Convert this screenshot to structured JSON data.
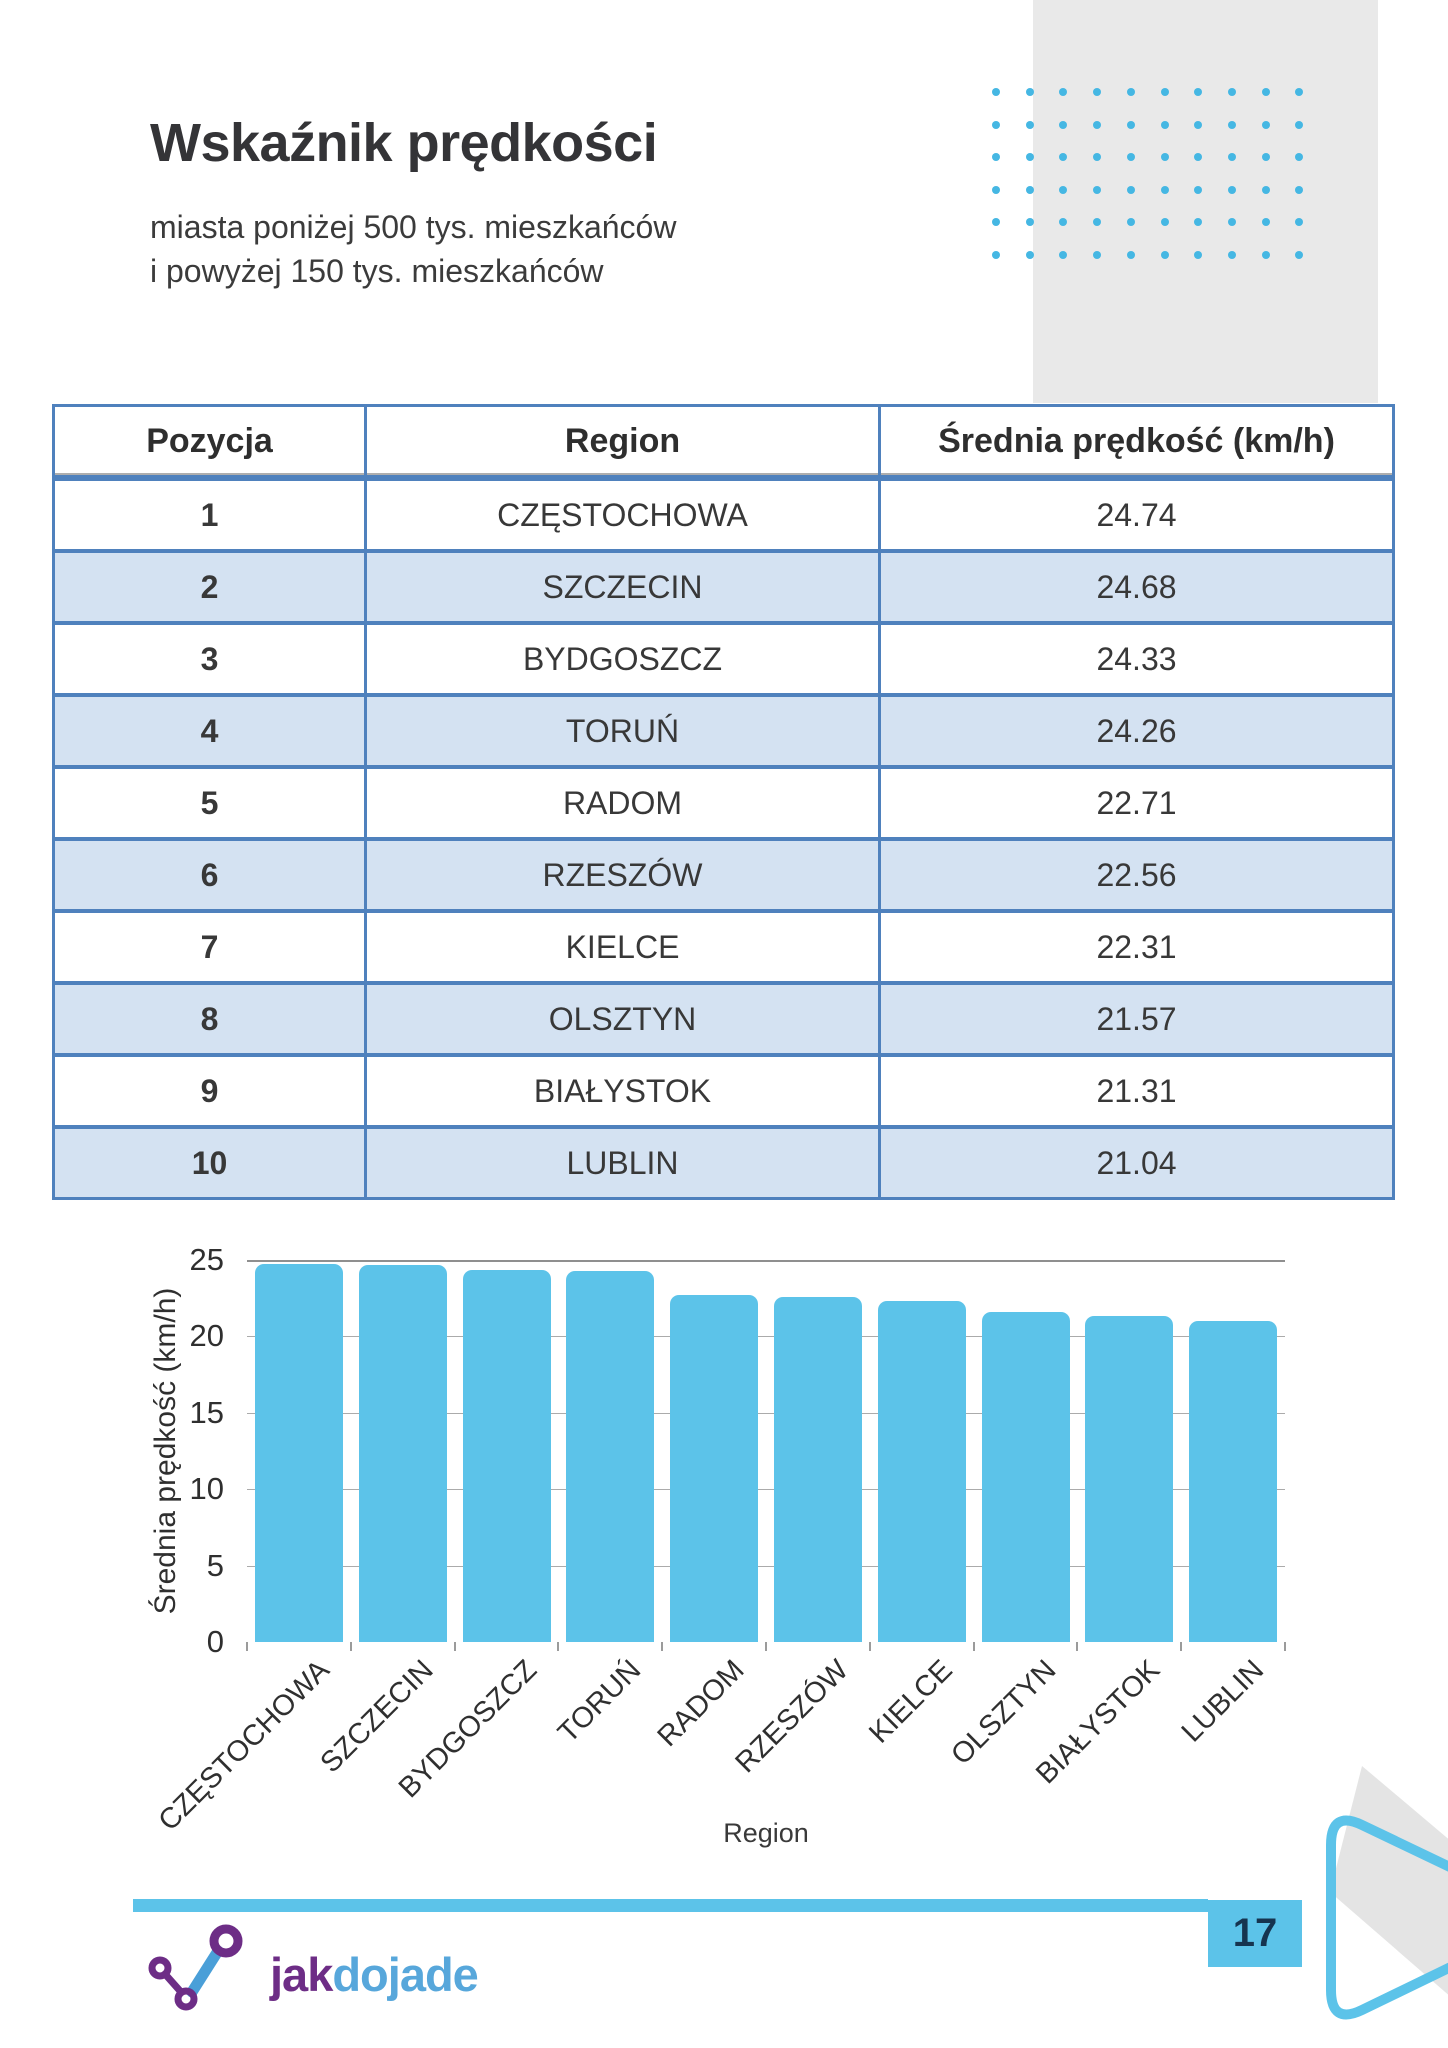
{
  "header": {
    "title": "Wskaźnik prędkości",
    "subtitle_line1": "miasta poniżej 500 tys. mieszkańców",
    "subtitle_line2": "i powyżej 150 tys. mieszkańców"
  },
  "table": {
    "headers": [
      "Pozycja",
      "Region",
      "Średnia prędkość (km/h)"
    ],
    "rows": [
      {
        "position": "1",
        "region": "CZĘSTOCHOWA",
        "speed": "24.74"
      },
      {
        "position": "2",
        "region": "SZCZECIN",
        "speed": "24.68"
      },
      {
        "position": "3",
        "region": "BYDGOSZCZ",
        "speed": "24.33"
      },
      {
        "position": "4",
        "region": "TORUŃ",
        "speed": "24.26"
      },
      {
        "position": "5",
        "region": "RADOM",
        "speed": "22.71"
      },
      {
        "position": "6",
        "region": "RZESZÓW",
        "speed": "22.56"
      },
      {
        "position": "7",
        "region": "KIELCE",
        "speed": "22.31"
      },
      {
        "position": "8",
        "region": "OLSZTYN",
        "speed": "21.57"
      },
      {
        "position": "9",
        "region": "BIAŁYSTOK",
        "speed": "21.31"
      },
      {
        "position": "10",
        "region": "LUBLIN",
        "speed": "21.04"
      }
    ]
  },
  "chart_data": {
    "type": "bar",
    "title": "",
    "categories": [
      "CZĘSTOCHOWA",
      "SZCZECIN",
      "BYDGOSZCZ",
      "TORUŃ",
      "RADOM",
      "RZESZÓW",
      "KIELCE",
      "OLSZTYN",
      "BIAŁYSTOK",
      "LUBLIN"
    ],
    "values": [
      24.74,
      24.68,
      24.33,
      24.26,
      22.71,
      22.56,
      22.31,
      21.57,
      21.31,
      21.04
    ],
    "xlabel": "Region",
    "ylabel": "Średnia prędkość (km/h)",
    "ylim": [
      0,
      25
    ],
    "yticks": [
      0,
      5,
      10,
      15,
      20,
      25
    ],
    "grid": "horizontal ticks, top line at 25",
    "legend": "none",
    "bar_color": "#5cc3e9"
  },
  "decor": {
    "dots_rows": 6,
    "dots_cols": 10
  },
  "footer": {
    "logo_text_primary": "jak",
    "logo_text_secondary": "dojade",
    "page_number": "17"
  },
  "colors": {
    "accent": "#5cc3e9",
    "dot": "#45b7e3",
    "table-border": "#4f81bd",
    "row-alt": "#d4e2f2",
    "decor-gray": "#e9e9e9",
    "pagenum-ink": "#16344f",
    "logo-purple": "#6d2d86",
    "logo-blue": "#57a7db"
  }
}
